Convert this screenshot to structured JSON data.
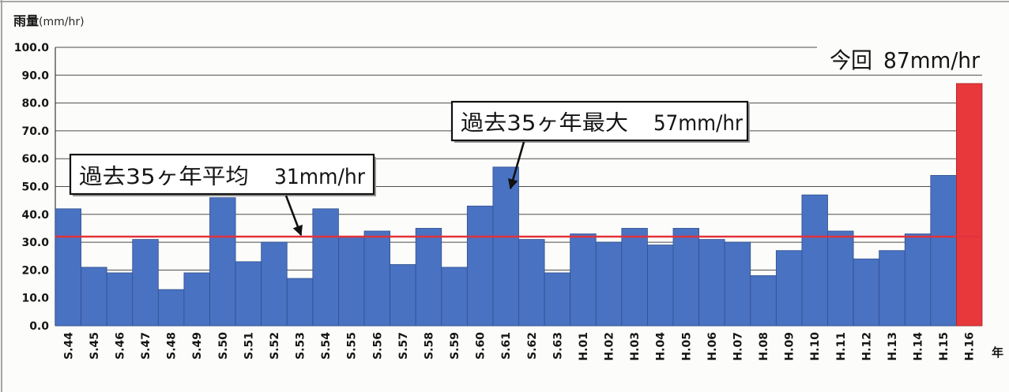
{
  "chart_data": {
    "type": "bar",
    "ylabel": "雨量",
    "yunit": "(mm/hr)",
    "xlabel": "年",
    "ylim": [
      0,
      100
    ],
    "yticks": [
      "0.0",
      "10.0",
      "20.0",
      "30.0",
      "40.0",
      "50.0",
      "60.0",
      "70.0",
      "80.0",
      "90.0",
      "100.0"
    ],
    "grid": true,
    "legend": "none",
    "categories": [
      "S.44",
      "S.45",
      "S.46",
      "S.47",
      "S.48",
      "S.49",
      "S.50",
      "S.51",
      "S.52",
      "S.53",
      "S.54",
      "S.55",
      "S.56",
      "S.57",
      "S.58",
      "S.59",
      "S.60",
      "S.61",
      "S.62",
      "S.63",
      "H.01",
      "H.02",
      "H.03",
      "H.04",
      "H.05",
      "H.06",
      "H.07",
      "H.08",
      "H.09",
      "H.10",
      "H.11",
      "H.12",
      "H.13",
      "H.14",
      "H.15",
      "H.16"
    ],
    "values": [
      42,
      21,
      19,
      31,
      13,
      19,
      46,
      23,
      30,
      17,
      42,
      32,
      34,
      22,
      35,
      21,
      43,
      57,
      31,
      19,
      33,
      30,
      35,
      29,
      35,
      31,
      30,
      18,
      27,
      47,
      34,
      24,
      27,
      33,
      54,
      87
    ],
    "bar_color": "#4a72c2",
    "highlight": {
      "category": "H.16",
      "color": "#e8383c"
    },
    "reference_line": {
      "value": 32,
      "color": "#e2323a"
    },
    "annotations": {
      "current": {
        "label": "今回",
        "value": "87mm/hr"
      },
      "max": {
        "label": "過去35ヶ年最大",
        "value": "57mm/hr"
      },
      "average": {
        "label": "過去35ヶ年平均",
        "value": "31mm/hr"
      }
    }
  }
}
